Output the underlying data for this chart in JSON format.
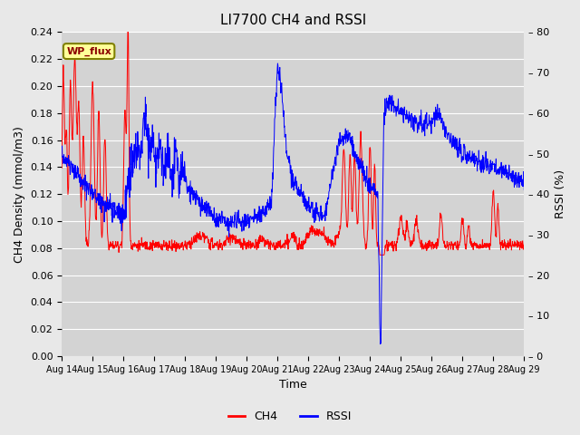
{
  "title": "LI7700 CH4 and RSSI",
  "xlabel": "Time",
  "ylabel_left": "CH4 Density (mmol/m3)",
  "ylabel_right": "RSSI (%)",
  "ylim_left": [
    0.0,
    0.24
  ],
  "ylim_right": [
    0,
    80
  ],
  "yticks_left": [
    0.0,
    0.02,
    0.04,
    0.06,
    0.08,
    0.1,
    0.12,
    0.14,
    0.16,
    0.18,
    0.2,
    0.22,
    0.24
  ],
  "yticks_right": [
    0,
    10,
    20,
    30,
    40,
    50,
    60,
    70,
    80
  ],
  "xtick_labels": [
    "Aug 14",
    "Aug 15",
    "Aug 16",
    "Aug 17",
    "Aug 18",
    "Aug 19",
    "Aug 20",
    "Aug 21",
    "Aug 22",
    "Aug 23",
    "Aug 24",
    "Aug 25",
    "Aug 26",
    "Aug 27",
    "Aug 28",
    "Aug 29"
  ],
  "site_label": "WP_flux",
  "ch4_color": "#FF0000",
  "rssi_color": "#0000FF",
  "background_color": "#E8E8E8",
  "plot_area_color": "#D3D3D3",
  "title_fontsize": 11,
  "axis_label_fontsize": 9,
  "tick_fontsize": 8,
  "legend_fontsize": 9
}
